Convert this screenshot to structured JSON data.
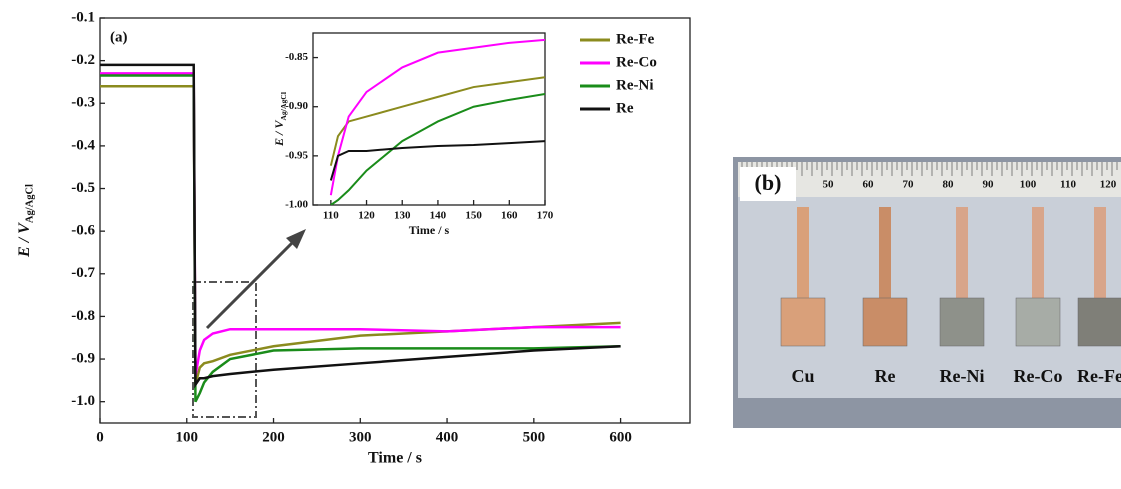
{
  "chart_data": [
    {
      "type": "line",
      "annotation": "(a)",
      "x_label": "Time / s",
      "y_label": "E / V",
      "y_label_sub": "Ag/AgCl",
      "xlim": [
        0,
        680
      ],
      "ylim": [
        -1.05,
        -0.1
      ],
      "xticks": [
        0,
        100,
        200,
        300,
        400,
        500,
        600
      ],
      "yticks": [
        {
          "value": -1.0,
          "label": "-1.0"
        },
        -0.9,
        -0.8,
        -0.7,
        -0.6,
        -0.5,
        -0.4,
        -0.3,
        -0.2,
        -0.1
      ],
      "legend": "upper right",
      "x": [
        0,
        108,
        110,
        115,
        120,
        130,
        150,
        200,
        300,
        400,
        500,
        600
      ],
      "series": [
        {
          "name": "Re-Fe",
          "color": "#8b8b1e",
          "values": [
            -0.26,
            -0.26,
            -0.96,
            -0.92,
            -0.91,
            -0.905,
            -0.89,
            -0.87,
            -0.845,
            -0.835,
            -0.825,
            -0.815
          ]
        },
        {
          "name": "Re-Co",
          "color": "#ff00ff",
          "values": [
            -0.23,
            -0.23,
            -0.94,
            -0.88,
            -0.855,
            -0.84,
            -0.83,
            -0.83,
            -0.83,
            -0.835,
            -0.825,
            -0.825
          ]
        },
        {
          "name": "Re-Ni",
          "color": "#1a8c1a",
          "values": [
            -0.235,
            -0.235,
            -1.0,
            -0.98,
            -0.955,
            -0.93,
            -0.9,
            -0.88,
            -0.875,
            -0.875,
            -0.875,
            -0.87
          ]
        },
        {
          "name": "Re",
          "color": "#111111",
          "values": [
            -0.21,
            -0.21,
            -0.96,
            -0.945,
            -0.945,
            -0.94,
            -0.935,
            -0.925,
            -0.91,
            -0.895,
            -0.88,
            -0.87
          ]
        }
      ]
    },
    {
      "type": "line",
      "x_label": "Time / s",
      "y_label": "E / V",
      "y_label_sub": "Ag/AgCl",
      "xlim": [
        105,
        170
      ],
      "ylim": [
        -1.0,
        -0.825
      ],
      "xticks": [
        110,
        120,
        130,
        140,
        150,
        160,
        170
      ],
      "yticks": [
        {
          "value": -1.0,
          "label": "-1.00"
        },
        -0.95,
        {
          "value": -0.9,
          "label": "-0.90"
        },
        -0.85
      ],
      "x": [
        110,
        112,
        115,
        120,
        130,
        140,
        150,
        160,
        170
      ],
      "series": [
        {
          "color": "#8b8b1e",
          "values": [
            -0.96,
            -0.93,
            -0.915,
            -0.91,
            -0.9,
            -0.89,
            -0.88,
            -0.875,
            -0.87
          ]
        },
        {
          "color": "#ff00ff",
          "values": [
            -0.99,
            -0.95,
            -0.91,
            -0.885,
            -0.86,
            -0.845,
            -0.84,
            -0.835,
            -0.832
          ]
        },
        {
          "color": "#1a8c1a",
          "values": [
            -1.0,
            -0.995,
            -0.985,
            -0.965,
            -0.935,
            -0.915,
            -0.9,
            -0.893,
            -0.887
          ]
        },
        {
          "color": "#111111",
          "values": [
            -0.975,
            -0.95,
            -0.945,
            -0.945,
            -0.942,
            -0.94,
            -0.939,
            -0.937,
            -0.935
          ]
        }
      ]
    }
  ],
  "photo": {
    "panel_label": "(b)",
    "ruler_labels": [
      "50",
      "60",
      "70",
      "80",
      "90",
      "100",
      "110",
      "120"
    ],
    "samples": [
      "Cu",
      "Re",
      "Re-Ni",
      "Re-Co",
      "Re-Fe"
    ]
  }
}
